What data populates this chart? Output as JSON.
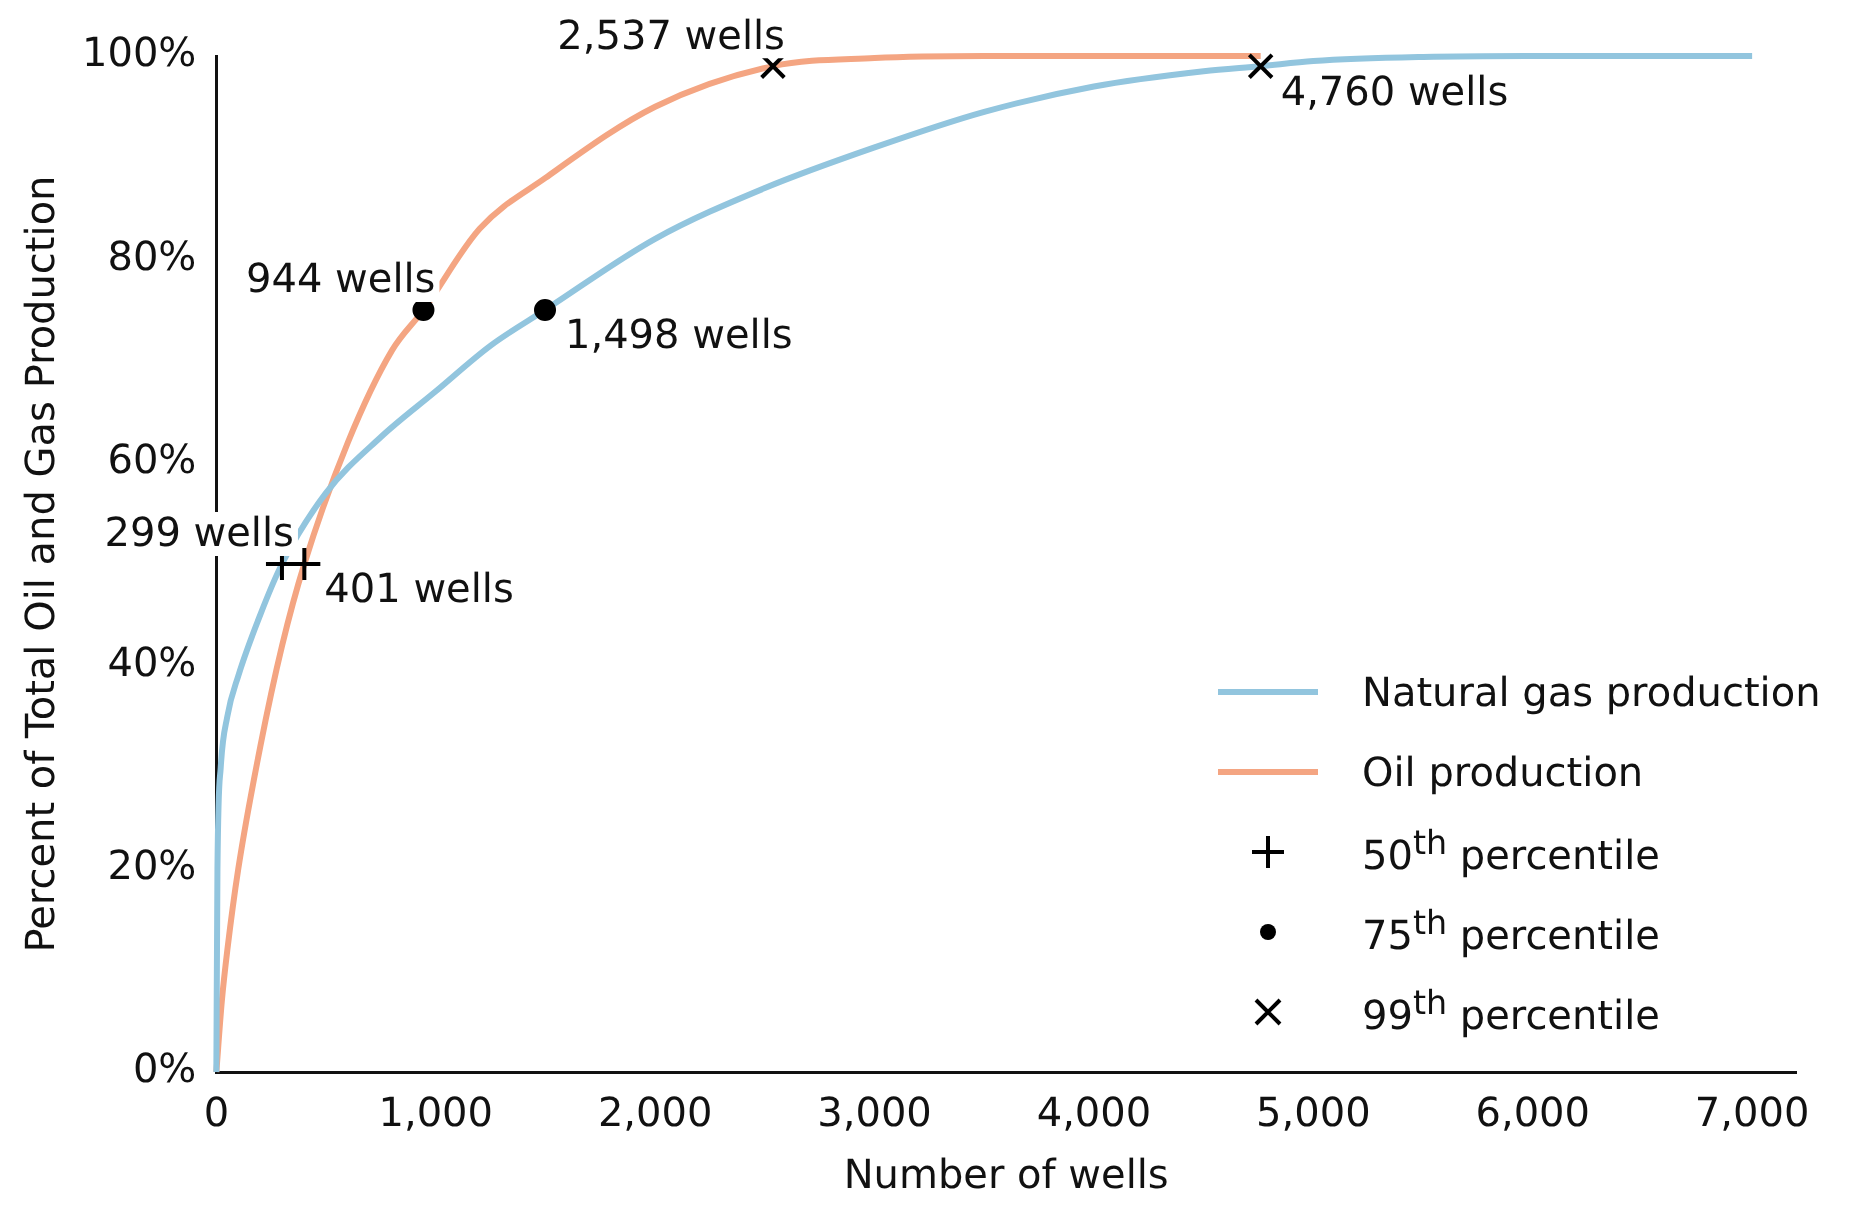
{
  "chart_data": {
    "type": "line",
    "xlabel": "Number of wells",
    "ylabel": "Percent of Total Oil and Gas Production",
    "xlim": [
      0,
      7200
    ],
    "ylim": [
      0,
      100
    ],
    "xticks": [
      0,
      {
        "value": 1000,
        "label": "1,000"
      },
      {
        "value": 2000,
        "label": "2,000"
      },
      {
        "value": 3000,
        "label": "3,000"
      },
      {
        "value": 4000,
        "label": "4,000"
      },
      {
        "value": 5000,
        "label": "5,000"
      },
      {
        "value": 6000,
        "label": "6,000"
      },
      {
        "value": 7000,
        "label": "7,000"
      }
    ],
    "yticks": [
      {
        "value": 0,
        "label": "0%"
      },
      {
        "value": 20,
        "label": "20%"
      },
      {
        "value": 40,
        "label": "40%"
      },
      {
        "value": 60,
        "label": "60%"
      },
      {
        "value": 80,
        "label": "80%"
      },
      {
        "value": 100,
        "label": "100%"
      }
    ],
    "grid": false,
    "legend": "bottom right",
    "marker": "none",
    "line_style": "solid",
    "series": [
      {
        "name": "Natural gas production",
        "color": "#92c5de",
        "x": [
          0,
          5,
          20,
          50,
          100,
          200,
          299,
          500,
          750,
          1000,
          1250,
          1498,
          2000,
          2500,
          3000,
          3500,
          4000,
          4500,
          4760,
          5000,
          5500,
          6000,
          7000
        ],
        "values": [
          0,
          20,
          30,
          35,
          39,
          45,
          50,
          57,
          62.5,
          67,
          71.5,
          75,
          82,
          87,
          91,
          94.5,
          97,
          98.5,
          99,
          99.5,
          99.9,
          100,
          100
        ]
      },
      {
        "name": "Oil production",
        "color": "#f4a582",
        "x": [
          0,
          25,
          50,
          100,
          200,
          300,
          401,
          600,
          800,
          944,
          1200,
          1500,
          2000,
          2537,
          3000,
          3500,
          4000,
          4760
        ],
        "values": [
          0,
          7,
          12,
          20,
          32,
          42,
          50,
          62,
          71,
          75,
          83,
          88,
          95,
          99,
          99.8,
          100,
          100,
          100
        ]
      },
      {
        "name": "50$^{th}$ percentile",
        "type": "scatter",
        "marker": "cross",
        "color": "#000000",
        "x": [
          299,
          401
        ],
        "values": [
          50,
          50
        ]
      },
      {
        "name": "75$^{th}$ percentile",
        "type": "scatter",
        "marker": "circle",
        "color": "#000000",
        "x": [
          944,
          1498
        ],
        "values": [
          75,
          75
        ]
      },
      {
        "name": "99$^{th}$ percentile",
        "type": "scatter",
        "marker": "x",
        "color": "#000000",
        "x": [
          2537,
          4760
        ],
        "values": [
          99,
          99
        ]
      }
    ],
    "annotations": [
      {
        "text": "299 wells",
        "x": 299,
        "y": 50
      },
      {
        "text": "401 wells",
        "x": 401,
        "y": 50
      },
      {
        "text": "944 wells",
        "x": 944,
        "y": 75
      },
      {
        "text": "1,498 wells",
        "x": 1498,
        "y": 75
      },
      {
        "text": "2,537 wells",
        "x": 2537,
        "y": 99
      },
      {
        "text": "4,760 wells",
        "x": 4760,
        "y": 99
      }
    ]
  }
}
